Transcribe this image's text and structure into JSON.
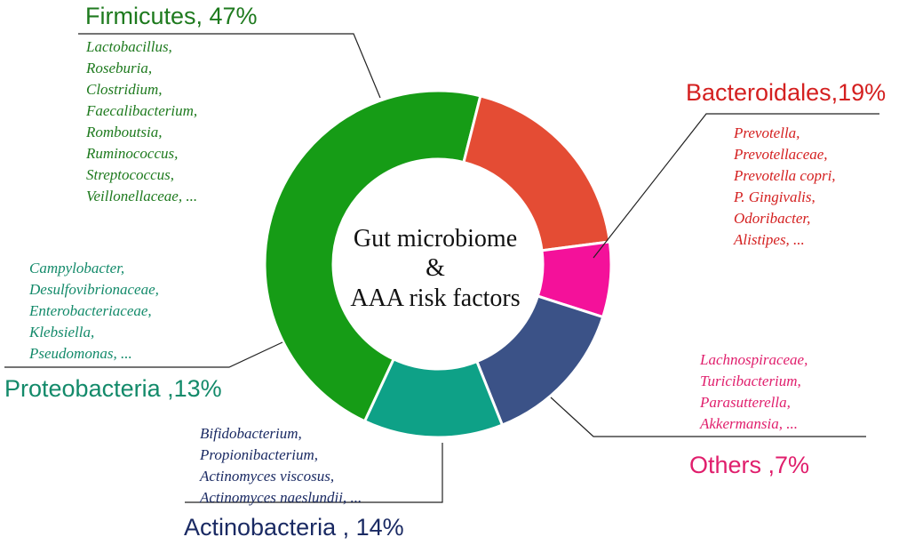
{
  "chart_data": {
    "type": "pie",
    "center_text": [
      "Gut microbiome",
      "&",
      "AAA risk factors"
    ],
    "slices": [
      {
        "name": "Firmicutes",
        "pct_label": ", 47%",
        "value": 47,
        "color": "#169c16",
        "text_color": "#1e7a1e",
        "genera": [
          "Lactobacillus,",
          "Roseburia,",
          "Clostridium,",
          "Faecalibacterium,",
          "Romboutsia,",
          "Ruminococcus,",
          "Streptococcus,",
          "Veillonellaceae, ..."
        ]
      },
      {
        "name": "Bacteroidales",
        "pct_label": ",19%",
        "value": 19,
        "color": "#e44c34",
        "text_color": "#d42020",
        "genera": [
          "Prevotella,",
          "Prevotellaceae,",
          "Prevotella copri,",
          "P. Gingivalis,",
          "Odoribacter,",
          "Alistipes, ..."
        ]
      },
      {
        "name": "Others",
        "pct_label": " ,7%",
        "value": 7,
        "color": "#f4119a",
        "text_color": "#e01e6c",
        "genera": [
          "Lachnospiraceae,",
          "Turicibacterium,",
          "Parasutterella,",
          "Akkermansia, ..."
        ]
      },
      {
        "name": "Actinobacteria",
        "pct_label": " , 14%",
        "value": 14,
        "color": "#3b5287",
        "text_color": "#1a2a63",
        "genera": [
          "Bifidobacterium,",
          "Propionibacterium,",
          "Actinomyces viscosus,",
          "Actinomyces naeslundii, ..."
        ]
      },
      {
        "name": "Proteobacteria",
        "pct_label": " ,13%",
        "value": 13,
        "color": "#0ea187",
        "text_color": "#138a6a",
        "genera": [
          "Campylobacter,",
          "Desulfovibrionaceae,",
          "Enterobacteriaceae,",
          "Klebsiella,",
          "Pseudomonas, ..."
        ]
      }
    ]
  }
}
